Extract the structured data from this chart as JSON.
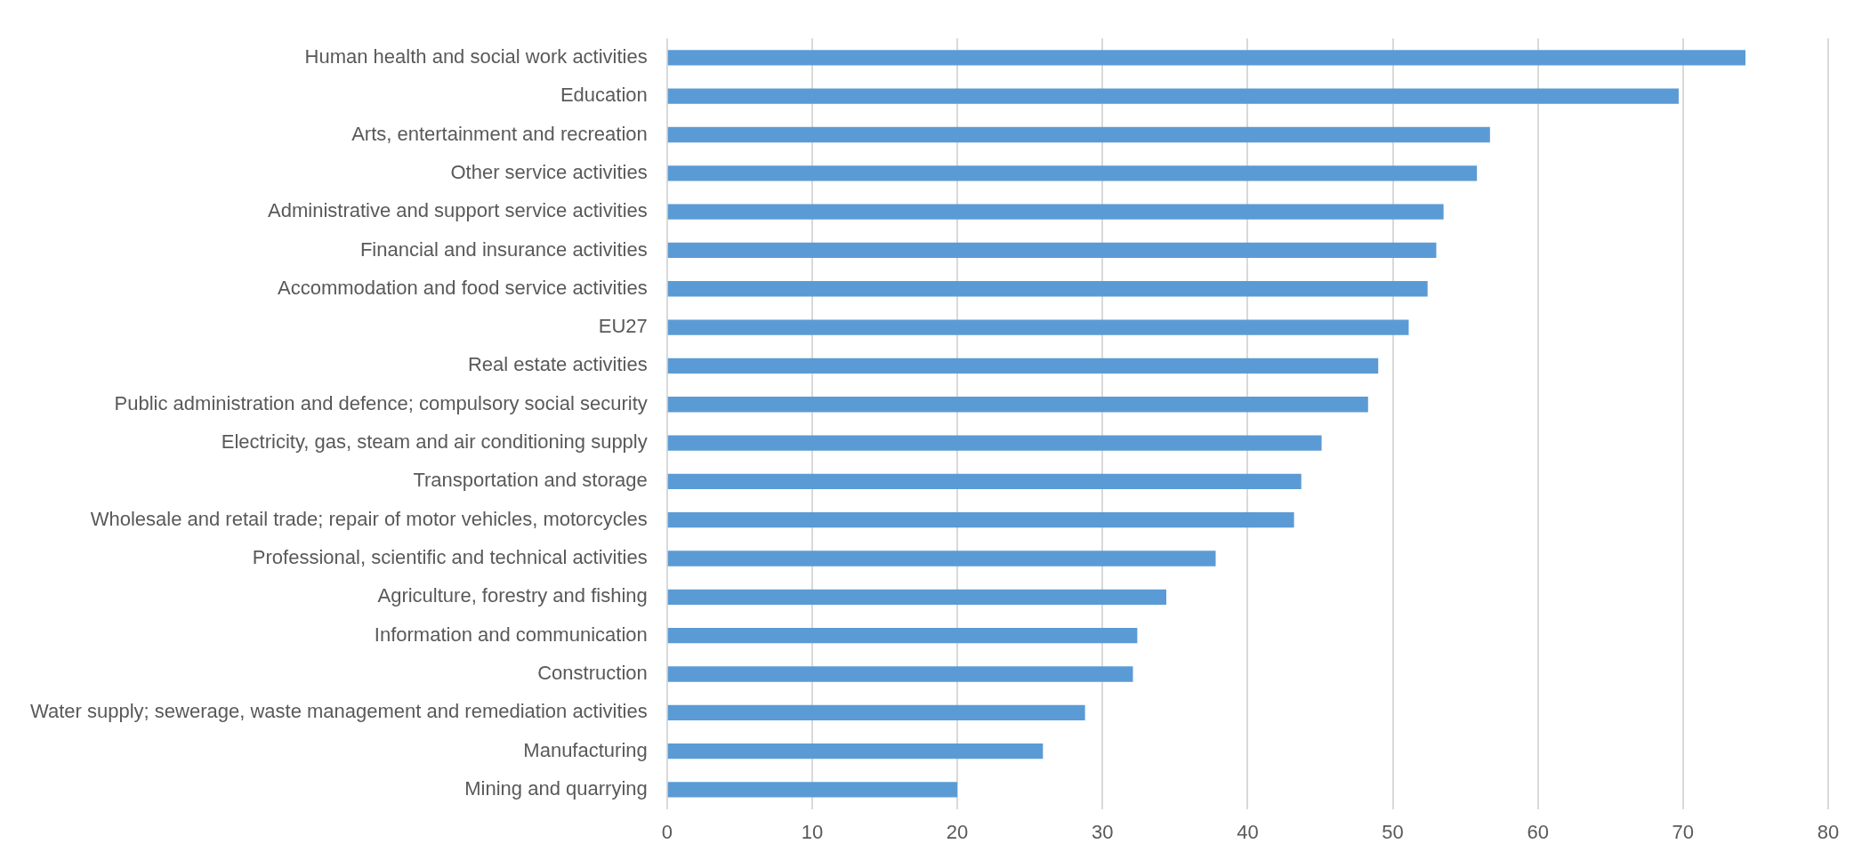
{
  "chart_data": {
    "type": "bar",
    "orientation": "horizontal",
    "categories": [
      "Human health and social work activities",
      "Education",
      "Arts, entertainment and recreation",
      "Other service activities",
      "Administrative and support service activities",
      "Financial and insurance activities",
      "Accommodation and food service activities",
      "EU27",
      "Real estate activities",
      "Public administration and defence; compulsory social security",
      "Electricity, gas, steam and air conditioning supply",
      "Transportation and storage",
      "Wholesale and retail trade; repair of motor vehicles, motorcycles",
      "Professional, scientific and technical activities",
      "Agriculture, forestry and fishing",
      "Information and communication",
      "Construction",
      "Water supply; sewerage, waste management and remediation activities",
      "Manufacturing",
      "Mining and quarrying"
    ],
    "values": [
      74.3,
      69.7,
      56.7,
      55.8,
      53.5,
      53.0,
      52.4,
      51.1,
      49.0,
      48.3,
      45.1,
      43.7,
      43.2,
      37.8,
      34.4,
      32.4,
      32.1,
      28.8,
      25.9,
      20.0
    ],
    "color": "#5b9bd5",
    "xlim": [
      0,
      80
    ],
    "xticks": [
      0,
      10,
      20,
      30,
      40,
      50,
      60,
      70,
      80
    ],
    "grid": "x"
  }
}
